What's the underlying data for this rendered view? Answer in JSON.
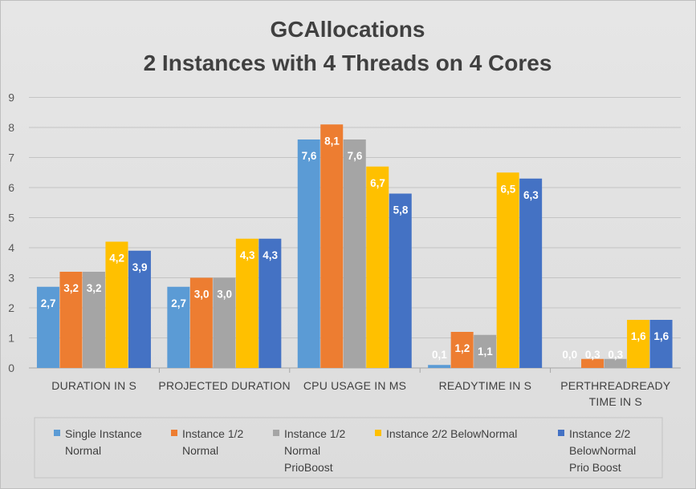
{
  "chart_data": {
    "type": "bar",
    "title_lines": [
      "GCAllocations",
      "2 Instances with 4 Threads on 4 Cores"
    ],
    "categories": [
      [
        "DURATION IN S"
      ],
      [
        "PROJECTED DURATION"
      ],
      [
        "CPU USAGE IN MS"
      ],
      [
        "READYTIME IN S"
      ],
      [
        "PERTHREADREADY",
        "TIME IN S"
      ]
    ],
    "ylim": [
      0,
      9
    ],
    "yticks": [
      "0",
      "1",
      "2",
      "3",
      "4",
      "5",
      "6",
      "7",
      "8",
      "9"
    ],
    "grid": true,
    "legend_position": "bottom",
    "series": [
      {
        "name": [
          "Single Instance",
          "Normal"
        ],
        "color": "#5b9bd5",
        "values": [
          2.7,
          2.7,
          7.6,
          0.1,
          0.0
        ],
        "labels": [
          "2,7",
          "2,7",
          "7,6",
          "0,1",
          "0,0"
        ]
      },
      {
        "name": [
          "Instance 1/2",
          "Normal"
        ],
        "color": "#ed7d31",
        "values": [
          3.2,
          3.0,
          8.1,
          1.2,
          0.3
        ],
        "labels": [
          "3,2",
          "3,0",
          "8,1",
          "1,2",
          "0,3"
        ]
      },
      {
        "name": [
          "Instance 1/2",
          "Normal",
          "PrioBoost"
        ],
        "color": "#a5a5a5",
        "values": [
          3.2,
          3.0,
          7.6,
          1.1,
          0.3
        ],
        "labels": [
          "3,2",
          "3,0",
          "7,6",
          "1,1",
          "0,3"
        ]
      },
      {
        "name": [
          "Instance 2/2 BelowNormal"
        ],
        "color": "#ffc000",
        "values": [
          4.2,
          4.3,
          6.7,
          6.5,
          1.6
        ],
        "labels": [
          "4,2",
          "4,3",
          "6,7",
          "6,5",
          "1,6"
        ]
      },
      {
        "name": [
          "Instance 2/2",
          "BelowNormal",
          "Prio Boost"
        ],
        "color": "#4472c4",
        "values": [
          3.9,
          4.3,
          5.8,
          6.3,
          1.6
        ],
        "labels": [
          "3,9",
          "4,3",
          "5,8",
          "6,3",
          "1,6"
        ]
      }
    ]
  }
}
